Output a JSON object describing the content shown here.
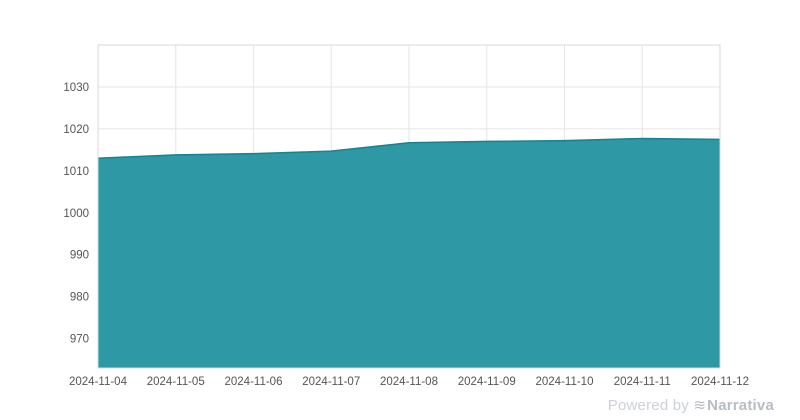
{
  "watermark": {
    "prefix": "Powered by ",
    "brand": "Narrativa",
    "logo_icon": "narrativa-wave-icon"
  },
  "colors": {
    "area_fill": "#2E98A4",
    "area_stroke": "#1B828F",
    "grid": "#e6e6e6",
    "border": "#d9d9d9",
    "axis_text": "#555555",
    "watermark_prefix": "#ccd1d7",
    "watermark_brand": "#b7bdc4"
  },
  "chart_data": {
    "type": "area",
    "title": "",
    "xlabel": "",
    "ylabel": "",
    "x": [
      "2024-11-04",
      "2024-11-05",
      "2024-11-06",
      "2024-11-07",
      "2024-11-08",
      "2024-11-09",
      "2024-11-10",
      "2024-11-11",
      "2024-11-12"
    ],
    "values": [
      1013.0,
      1013.8,
      1014.1,
      1014.7,
      1016.7,
      1017.0,
      1017.2,
      1017.7,
      1017.5
    ],
    "yticks": [
      970,
      980,
      990,
      1000,
      1010,
      1020,
      1030
    ],
    "ylim": [
      963,
      1040
    ],
    "grid": true,
    "legend": "none"
  }
}
